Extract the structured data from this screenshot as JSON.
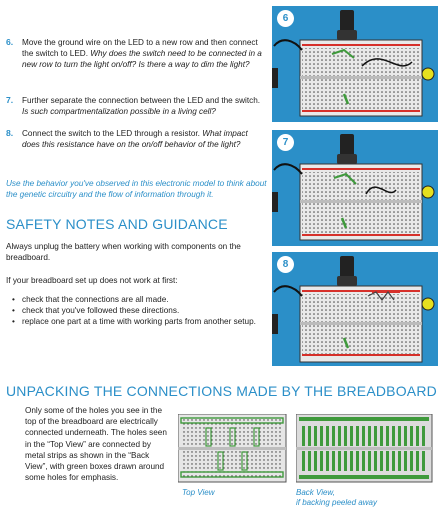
{
  "steps": [
    {
      "num": "6.",
      "text": "Move the ground wire on the LED to a new row and then connect the switch to LED. ",
      "question": "Why does the switch need to be connected in a new row to turn the light on/off? Is there a way to dim the light?"
    },
    {
      "num": "7.",
      "text": "Further separate the connection between the LED and the switch. ",
      "question": "Is such compartmentalization possible in a living cell?"
    },
    {
      "num": "8.",
      "text": "Connect the switch to the LED through a resistor. ",
      "question": "What impact does this resistance have on the on/off behavior of the light?"
    }
  ],
  "reflection": "Use the behavior you've observed in this electronic model to think about the genetic circuitry and the flow of information through it.",
  "safety": {
    "heading": "SAFETY NOTES AND GUIDANCE",
    "intro": "Always unplug the battery when working with components on the breadboard.",
    "lead": "If your breadboard set up does not work at first:",
    "tips": [
      "check that the connections are all made.",
      "check that you've followed these directions.",
      "replace one part at a time with working parts from another setup."
    ]
  },
  "unpacking": {
    "heading": "UNPACKING THE CONNECTIONS MADE BY THE BREADBOARD",
    "body": "Only some of the holes you see in the top of the breadboard are electrically connected underneath. The holes seen in the “Top View” are connected by metal strips as shown in the “Back View”, with green boxes drawn around some holes for emphasis.",
    "top_view_caption": "Top View",
    "back_view_caption_1": "Back View,",
    "back_view_caption_2": "if backing peeled away"
  },
  "panels": [
    {
      "badge": "6"
    },
    {
      "badge": "7"
    },
    {
      "badge": "8"
    }
  ],
  "colors": {
    "accent": "#2b8fc8",
    "wire_red": "#d6302a",
    "strip_green": "#3f9a3c",
    "led_yellow": "#e6e01f"
  }
}
